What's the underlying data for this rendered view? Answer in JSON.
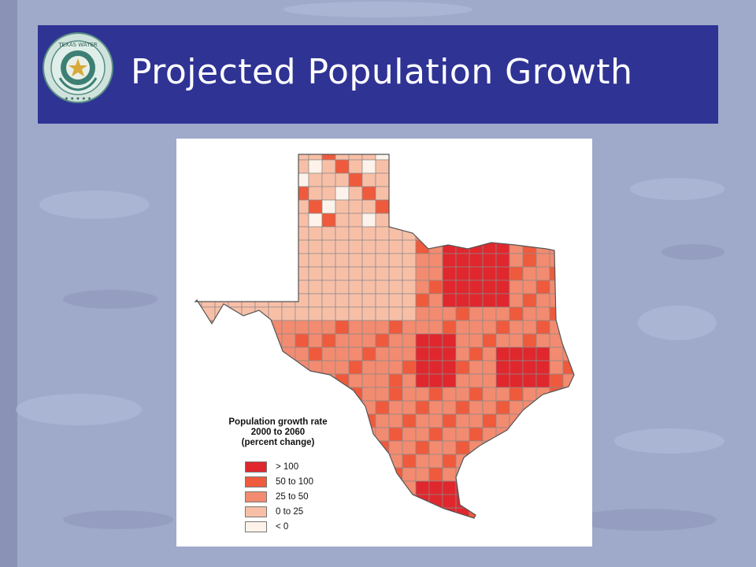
{
  "slide": {
    "title": "Projected Population Growth",
    "header_color": "#2f3394",
    "seal": {
      "name": "Texas Water Development Board seal",
      "text": "TEXAS WATER DEVELOPMENT BOARD"
    }
  },
  "map": {
    "region": "Texas counties",
    "legend": {
      "title": "Population growth rate 2000 to 2060 (percent change)",
      "title_lines": [
        "Population growth rate",
        "2000 to 2060",
        "(percent change)"
      ],
      "items": [
        {
          "label": "> 100",
          "color": "#e0272d"
        },
        {
          "label": "50 to 100",
          "color": "#ef5a3c"
        },
        {
          "label": "25 to 50",
          "color": "#f28b70"
        },
        {
          "label": "0 to 25",
          "color": "#f8bfa7"
        },
        {
          "label": "< 0",
          "color": "#fdf3ea"
        }
      ]
    }
  }
}
